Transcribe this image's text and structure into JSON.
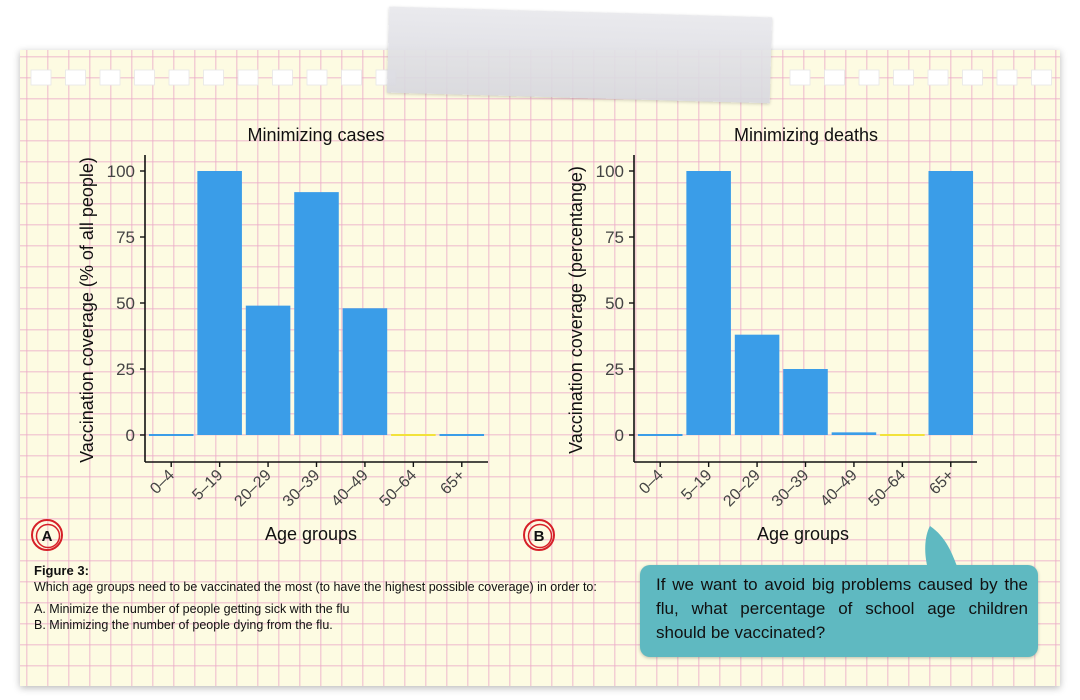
{
  "chart_data": [
    {
      "type": "bar",
      "panel": "A",
      "title": "Minimizing cases",
      "xlabel": "Age groups",
      "ylabel": "Vaccination coverage (% of all people)",
      "categories": [
        "0–4",
        "5–19",
        "20–29",
        "30–39",
        "40–49",
        "50–64",
        "65+"
      ],
      "values": [
        0,
        100,
        49,
        92,
        48,
        0,
        0
      ],
      "ylim": [
        0,
        100
      ],
      "yticks": [
        "0",
        "25",
        "50",
        "75",
        "100"
      ],
      "grid": false,
      "bar_color": "#3a9de8",
      "zero_bar_colors": [
        "#3a9de8",
        "#3a9de8",
        "#3a9de8",
        "#3a9de8",
        "#3a9de8",
        "#f2e23a",
        "#3a9de8"
      ]
    },
    {
      "type": "bar",
      "panel": "B",
      "title": "Minimizing deaths",
      "xlabel": "Age groups",
      "ylabel": "Vaccination coverage (percentange)",
      "categories": [
        "0–4",
        "5–19",
        "20–29",
        "30–39",
        "40–49",
        "50–64",
        "65+"
      ],
      "values": [
        0,
        100,
        38,
        25,
        1,
        0,
        100
      ],
      "ylim": [
        0,
        100
      ],
      "yticks": [
        "0",
        "25",
        "50",
        "75",
        "100"
      ],
      "grid": false,
      "bar_color": "#3a9de8",
      "zero_bar_colors": [
        "#3a9de8",
        "#3a9de8",
        "#3a9de8",
        "#3a9de8",
        "#3a9de8",
        "#f2e23a",
        "#3a9de8"
      ]
    }
  ],
  "panel_badges": {
    "a": "A",
    "b": "B",
    "badge_color": "#d62028"
  },
  "caption": {
    "title": "Figure 3:",
    "text": "Which age groups need to be vaccinated the most (to have the highest possible coverage) in order to:",
    "item_a": "A. Minimize the number of people getting sick with the flu",
    "item_b": "B. Minimizing the number of people dying from the flu."
  },
  "callout": {
    "text": "If we want to avoid big problems caused by the flu, what percentage of school age children should be vaccinated?",
    "color": "#5fb9c1"
  },
  "decorations": {
    "paper_color": "#fdfbe2",
    "grid_color": "#ebaac8",
    "tape": true
  }
}
